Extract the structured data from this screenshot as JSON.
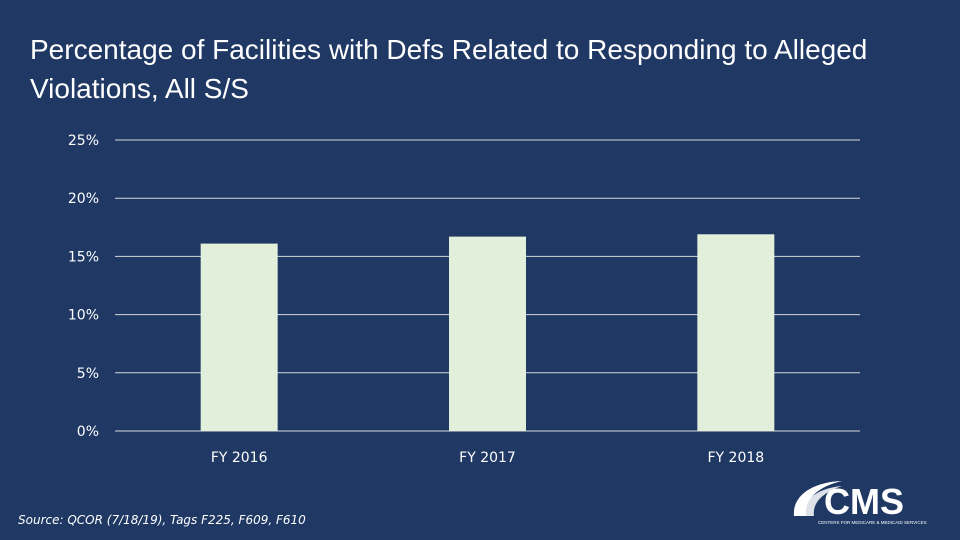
{
  "colors": {
    "background": "#1f3864",
    "bar": "#e2efda",
    "gridline": "#d9d9d9",
    "text": "#ffffff"
  },
  "slide": {
    "title": "Percentage of Facilities with Defs Related to Responding to Alleged Violations, All S/S",
    "source": "Source: QCOR (7/18/19), Tags F225, F609, F610"
  },
  "logo": {
    "text": "CMS",
    "subtitle": "CENTERS FOR MEDICARE & MEDICAID SERVICES",
    "icon": "cms-swoosh-logo"
  },
  "chart_data": {
    "type": "bar",
    "title": "",
    "xlabel": "",
    "ylabel": "",
    "categories": [
      "FY 2016",
      "FY 2017",
      "FY 2018"
    ],
    "values": [
      16.1,
      16.7,
      16.9
    ],
    "ylim": [
      0,
      25
    ],
    "yticks": [
      0,
      5,
      10,
      15,
      20,
      25
    ],
    "ytick_format": "percent",
    "grid": true,
    "legend": "none"
  }
}
